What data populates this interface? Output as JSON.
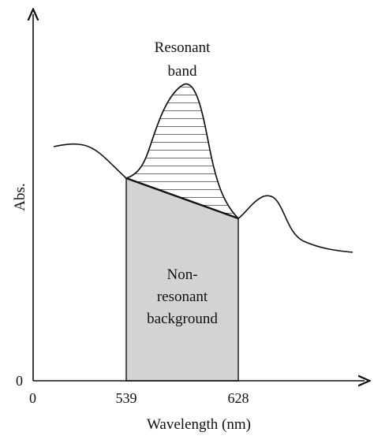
{
  "figure": {
    "colors": {
      "axis": "#111111",
      "curve": "#111111",
      "background_fill": "#d3d3d3",
      "hatch": "#111111"
    },
    "y_axis": {
      "label": "Abs.",
      "origin_label": "0"
    },
    "x_axis": {
      "label": "Wavelength (nm)",
      "origin_label": "0",
      "ticks": [
        "539",
        "628"
      ]
    },
    "annotations": {
      "resonant": [
        "Resonant",
        "band"
      ],
      "non_resonant": [
        "Non-",
        "resonant",
        "background"
      ]
    }
  }
}
